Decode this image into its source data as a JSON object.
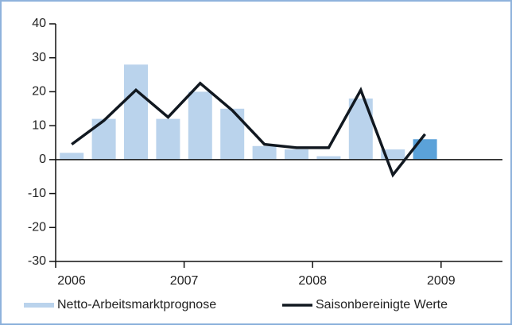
{
  "chart_data": {
    "type": "bar_line",
    "categories": [
      "2006",
      null,
      null,
      null,
      "2007",
      null,
      null,
      null,
      "2008",
      null,
      null,
      null,
      "2009",
      null
    ],
    "series": [
      {
        "name": "Netto-Arbeitsmarktprognose",
        "type": "bar",
        "color": "#bad3ec",
        "colors": [
          "#bad3ec",
          "#bad3ec",
          "#bad3ec",
          "#bad3ec",
          "#bad3ec",
          "#bad3ec",
          "#bad3ec",
          "#bad3ec",
          "#bad3ec",
          "#bad3ec",
          "#bad3ec",
          "#5ba2d9",
          null,
          null
        ],
        "values": [
          2,
          12,
          28,
          12,
          20,
          15,
          4,
          3,
          1,
          18,
          3,
          6,
          null,
          null
        ]
      },
      {
        "name": "Saisonbereinigte Werte",
        "type": "line",
        "color": "#111820",
        "values": [
          4.5,
          11.5,
          20.5,
          12.5,
          22.5,
          14.5,
          4.5,
          3.5,
          3.5,
          20.5,
          -4.5,
          7.5,
          null,
          null
        ]
      }
    ],
    "ylim": [
      -30,
      40
    ],
    "yticks": [
      -30,
      -20,
      -10,
      0,
      10,
      20,
      30,
      40
    ]
  }
}
